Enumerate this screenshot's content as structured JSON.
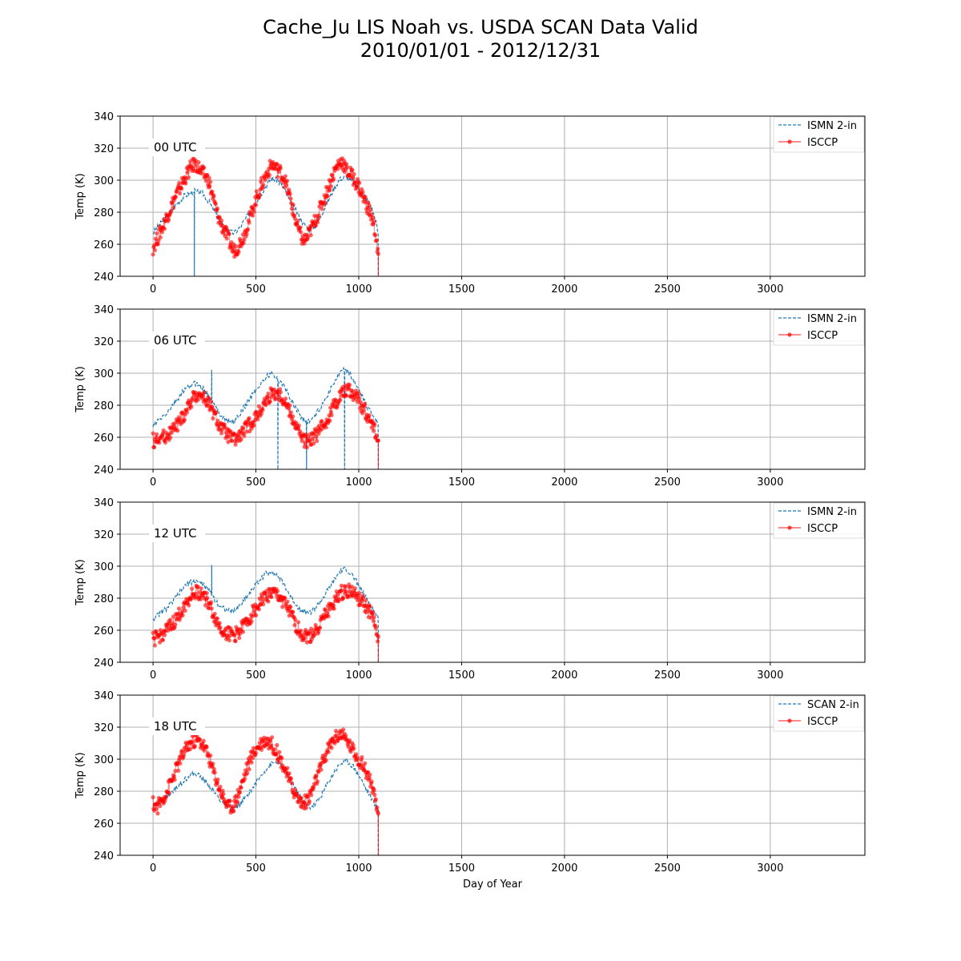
{
  "title_line1": "Cache_Ju LIS Noah vs. USDA SCAN Data Valid",
  "title_line2": "2010/01/01 - 2012/12/31",
  "colors": {
    "isccp": "#ff0000",
    "station": "#1f77b4",
    "grid": "#b0b0b0"
  },
  "chart_data": [
    {
      "type": "line",
      "panel_label": "00 UTC",
      "ylabel": "Temp (K)",
      "xlabel": "",
      "xlim": [
        -160,
        3460
      ],
      "ylim": [
        240,
        340
      ],
      "xticks": [
        0,
        500,
        1000,
        1500,
        2000,
        2500,
        3000
      ],
      "yticks": [
        240,
        260,
        280,
        300,
        320,
        340
      ],
      "grid": true,
      "legend_position": "top-right",
      "series": [
        {
          "name": "ISMN 2-in",
          "style": "dashed",
          "x": [
            0,
            30,
            60,
            90,
            120,
            150,
            180,
            200,
            201,
            202,
            210,
            240,
            270,
            300,
            330,
            365,
            395,
            425,
            455,
            485,
            515,
            545,
            575,
            605,
            635,
            665,
            700,
            730,
            760,
            790,
            820,
            850,
            880,
            910,
            940,
            970,
            1000,
            1030,
            1060,
            1080,
            1090,
            1094,
            1095
          ],
          "y": [
            267,
            272,
            276,
            281,
            286,
            290,
            292,
            293,
            240,
            293,
            293,
            292,
            287,
            280,
            273,
            268,
            267,
            271,
            277,
            283,
            289,
            296,
            301,
            300,
            295,
            287,
            280,
            273,
            269,
            272,
            279,
            287,
            295,
            301,
            302,
            299,
            295,
            290,
            283,
            276,
            270,
            266,
            240
          ]
        },
        {
          "name": "ISCCP",
          "style": "marker",
          "x": [
            0,
            15,
            30,
            50,
            70,
            90,
            110,
            130,
            150,
            170,
            190,
            210,
            230,
            250,
            270,
            290,
            310,
            330,
            350,
            370,
            390,
            410,
            440,
            470,
            500,
            530,
            560,
            580,
            600,
            620,
            640,
            660,
            690,
            710,
            730,
            750,
            770,
            800,
            830,
            860,
            880,
            900,
            920,
            940,
            960,
            980,
            1000,
            1020,
            1040,
            1060,
            1080,
            1090,
            1095
          ],
          "y": [
            258,
            262,
            266,
            272,
            278,
            284,
            290,
            295,
            300,
            305,
            309,
            310,
            306,
            303,
            300,
            290,
            280,
            273,
            268,
            262,
            256,
            258,
            265,
            276,
            288,
            298,
            306,
            310,
            307,
            305,
            300,
            292,
            276,
            268,
            262,
            264,
            270,
            278,
            288,
            298,
            305,
            310,
            312,
            306,
            304,
            300,
            296,
            290,
            284,
            278,
            268,
            258,
            254
          ]
        }
      ]
    },
    {
      "type": "line",
      "panel_label": "06 UTC",
      "ylabel": "Temp (K)",
      "xlabel": "",
      "xlim": [
        -160,
        3460
      ],
      "ylim": [
        240,
        340
      ],
      "xticks": [
        0,
        500,
        1000,
        1500,
        2000,
        2500,
        3000
      ],
      "yticks": [
        240,
        260,
        280,
        300,
        320,
        340
      ],
      "grid": true,
      "legend_position": "top-right",
      "series": [
        {
          "name": "ISMN 2-in",
          "style": "dashed",
          "x": [
            0,
            30,
            60,
            90,
            120,
            150,
            180,
            210,
            240,
            270,
            284,
            285,
            286,
            300,
            330,
            365,
            395,
            425,
            455,
            485,
            515,
            545,
            575,
            600,
            606,
            607,
            608,
            635,
            665,
            700,
            730,
            745,
            746,
            747,
            760,
            790,
            820,
            850,
            880,
            910,
            930,
            931,
            932,
            960,
            990,
            1020,
            1050,
            1080,
            1094,
            1095
          ],
          "y": [
            267,
            271,
            274,
            279,
            284,
            289,
            292,
            294,
            291,
            286,
            283,
            301,
            283,
            279,
            274,
            270,
            270,
            275,
            281,
            287,
            292,
            297,
            300,
            297,
            296,
            240,
            296,
            292,
            285,
            277,
            271,
            270,
            240,
            270,
            270,
            274,
            280,
            287,
            294,
            300,
            302,
            240,
            302,
            299,
            292,
            284,
            277,
            272,
            268,
            240
          ]
        },
        {
          "name": "ISCCP",
          "style": "marker",
          "x": [
            0,
            30,
            60,
            90,
            120,
            150,
            180,
            210,
            240,
            270,
            300,
            330,
            365,
            395,
            425,
            455,
            485,
            515,
            545,
            575,
            605,
            635,
            665,
            700,
            730,
            760,
            790,
            820,
            850,
            880,
            910,
            940,
            970,
            1000,
            1030,
            1060,
            1080,
            1095
          ],
          "y": [
            258,
            259,
            261,
            264,
            268,
            274,
            282,
            287,
            286,
            281,
            273,
            266,
            261,
            258,
            261,
            266,
            270,
            275,
            282,
            287,
            288,
            284,
            276,
            266,
            258,
            257,
            261,
            266,
            272,
            280,
            287,
            290,
            288,
            283,
            277,
            270,
            262,
            258
          ]
        }
      ]
    },
    {
      "type": "line",
      "panel_label": "12 UTC",
      "ylabel": "Temp (K)",
      "xlabel": "",
      "xlim": [
        -160,
        3460
      ],
      "ylim": [
        240,
        340
      ],
      "xticks": [
        0,
        500,
        1000,
        1500,
        2000,
        2500,
        3000
      ],
      "yticks": [
        240,
        260,
        280,
        300,
        320,
        340
      ],
      "grid": true,
      "legend_position": "top-right",
      "series": [
        {
          "name": "ISMN 2-in",
          "style": "dashed",
          "x": [
            0,
            30,
            60,
            90,
            120,
            150,
            180,
            210,
            240,
            270,
            284,
            285,
            286,
            300,
            330,
            365,
            395,
            425,
            455,
            485,
            515,
            545,
            575,
            605,
            635,
            665,
            700,
            730,
            760,
            790,
            820,
            850,
            880,
            910,
            940,
            970,
            1000,
            1030,
            1060,
            1080,
            1094,
            1095
          ],
          "y": [
            267,
            270,
            273,
            277,
            282,
            287,
            290,
            291,
            289,
            285,
            283,
            301,
            283,
            279,
            275,
            272,
            272,
            276,
            281,
            286,
            291,
            295,
            297,
            294,
            289,
            282,
            275,
            272,
            271,
            274,
            279,
            285,
            291,
            297,
            298,
            294,
            288,
            281,
            275,
            271,
            268,
            240
          ]
        },
        {
          "name": "ISCCP",
          "style": "marker",
          "x": [
            0,
            30,
            60,
            90,
            120,
            150,
            180,
            210,
            240,
            270,
            300,
            330,
            365,
            395,
            425,
            455,
            485,
            515,
            545,
            575,
            605,
            635,
            665,
            700,
            730,
            760,
            790,
            820,
            850,
            880,
            910,
            940,
            970,
            1000,
            1030,
            1060,
            1080,
            1095
          ],
          "y": [
            254,
            256,
            259,
            263,
            268,
            275,
            281,
            284,
            283,
            277,
            268,
            261,
            258,
            257,
            260,
            265,
            271,
            276,
            281,
            283,
            282,
            278,
            271,
            262,
            257,
            256,
            260,
            266,
            272,
            278,
            283,
            285,
            284,
            280,
            275,
            270,
            262,
            256
          ]
        }
      ]
    },
    {
      "type": "line",
      "panel_label": "18 UTC",
      "ylabel": "Temp (K)",
      "xlabel": "Day of Year",
      "xlim": [
        -160,
        3460
      ],
      "ylim": [
        240,
        340
      ],
      "xticks": [
        0,
        500,
        1000,
        1500,
        2000,
        2500,
        3000
      ],
      "yticks": [
        240,
        260,
        280,
        300,
        320,
        340
      ],
      "grid": true,
      "legend_position": "top-right",
      "series": [
        {
          "name": "SCAN 2-in",
          "style": "dashed",
          "x": [
            0,
            30,
            60,
            90,
            120,
            150,
            180,
            210,
            240,
            270,
            300,
            330,
            365,
            395,
            425,
            455,
            485,
            515,
            545,
            575,
            605,
            635,
            665,
            700,
            730,
            760,
            790,
            820,
            850,
            880,
            910,
            940,
            970,
            1000,
            1030,
            1060,
            1080,
            1094,
            1095
          ],
          "y": [
            271,
            273,
            276,
            279,
            283,
            287,
            290,
            291,
            288,
            284,
            279,
            274,
            270,
            269,
            272,
            277,
            282,
            288,
            293,
            297,
            298,
            294,
            288,
            280,
            273,
            270,
            272,
            278,
            285,
            292,
            297,
            299,
            296,
            290,
            283,
            276,
            271,
            268,
            240
          ]
        },
        {
          "name": "ISCCP",
          "style": "marker",
          "x": [
            0,
            20,
            40,
            60,
            90,
            120,
            150,
            180,
            210,
            240,
            270,
            300,
            330,
            365,
            395,
            425,
            455,
            485,
            515,
            545,
            575,
            605,
            635,
            665,
            700,
            730,
            760,
            790,
            820,
            850,
            880,
            910,
            940,
            970,
            1000,
            1030,
            1060,
            1080,
            1095
          ],
          "y": [
            272,
            270,
            274,
            278,
            286,
            296,
            304,
            310,
            312,
            310,
            302,
            290,
            280,
            270,
            272,
            282,
            294,
            303,
            309,
            312,
            310,
            304,
            296,
            286,
            276,
            272,
            276,
            286,
            296,
            306,
            313,
            316,
            312,
            306,
            300,
            294,
            286,
            272,
            266
          ]
        }
      ]
    }
  ]
}
